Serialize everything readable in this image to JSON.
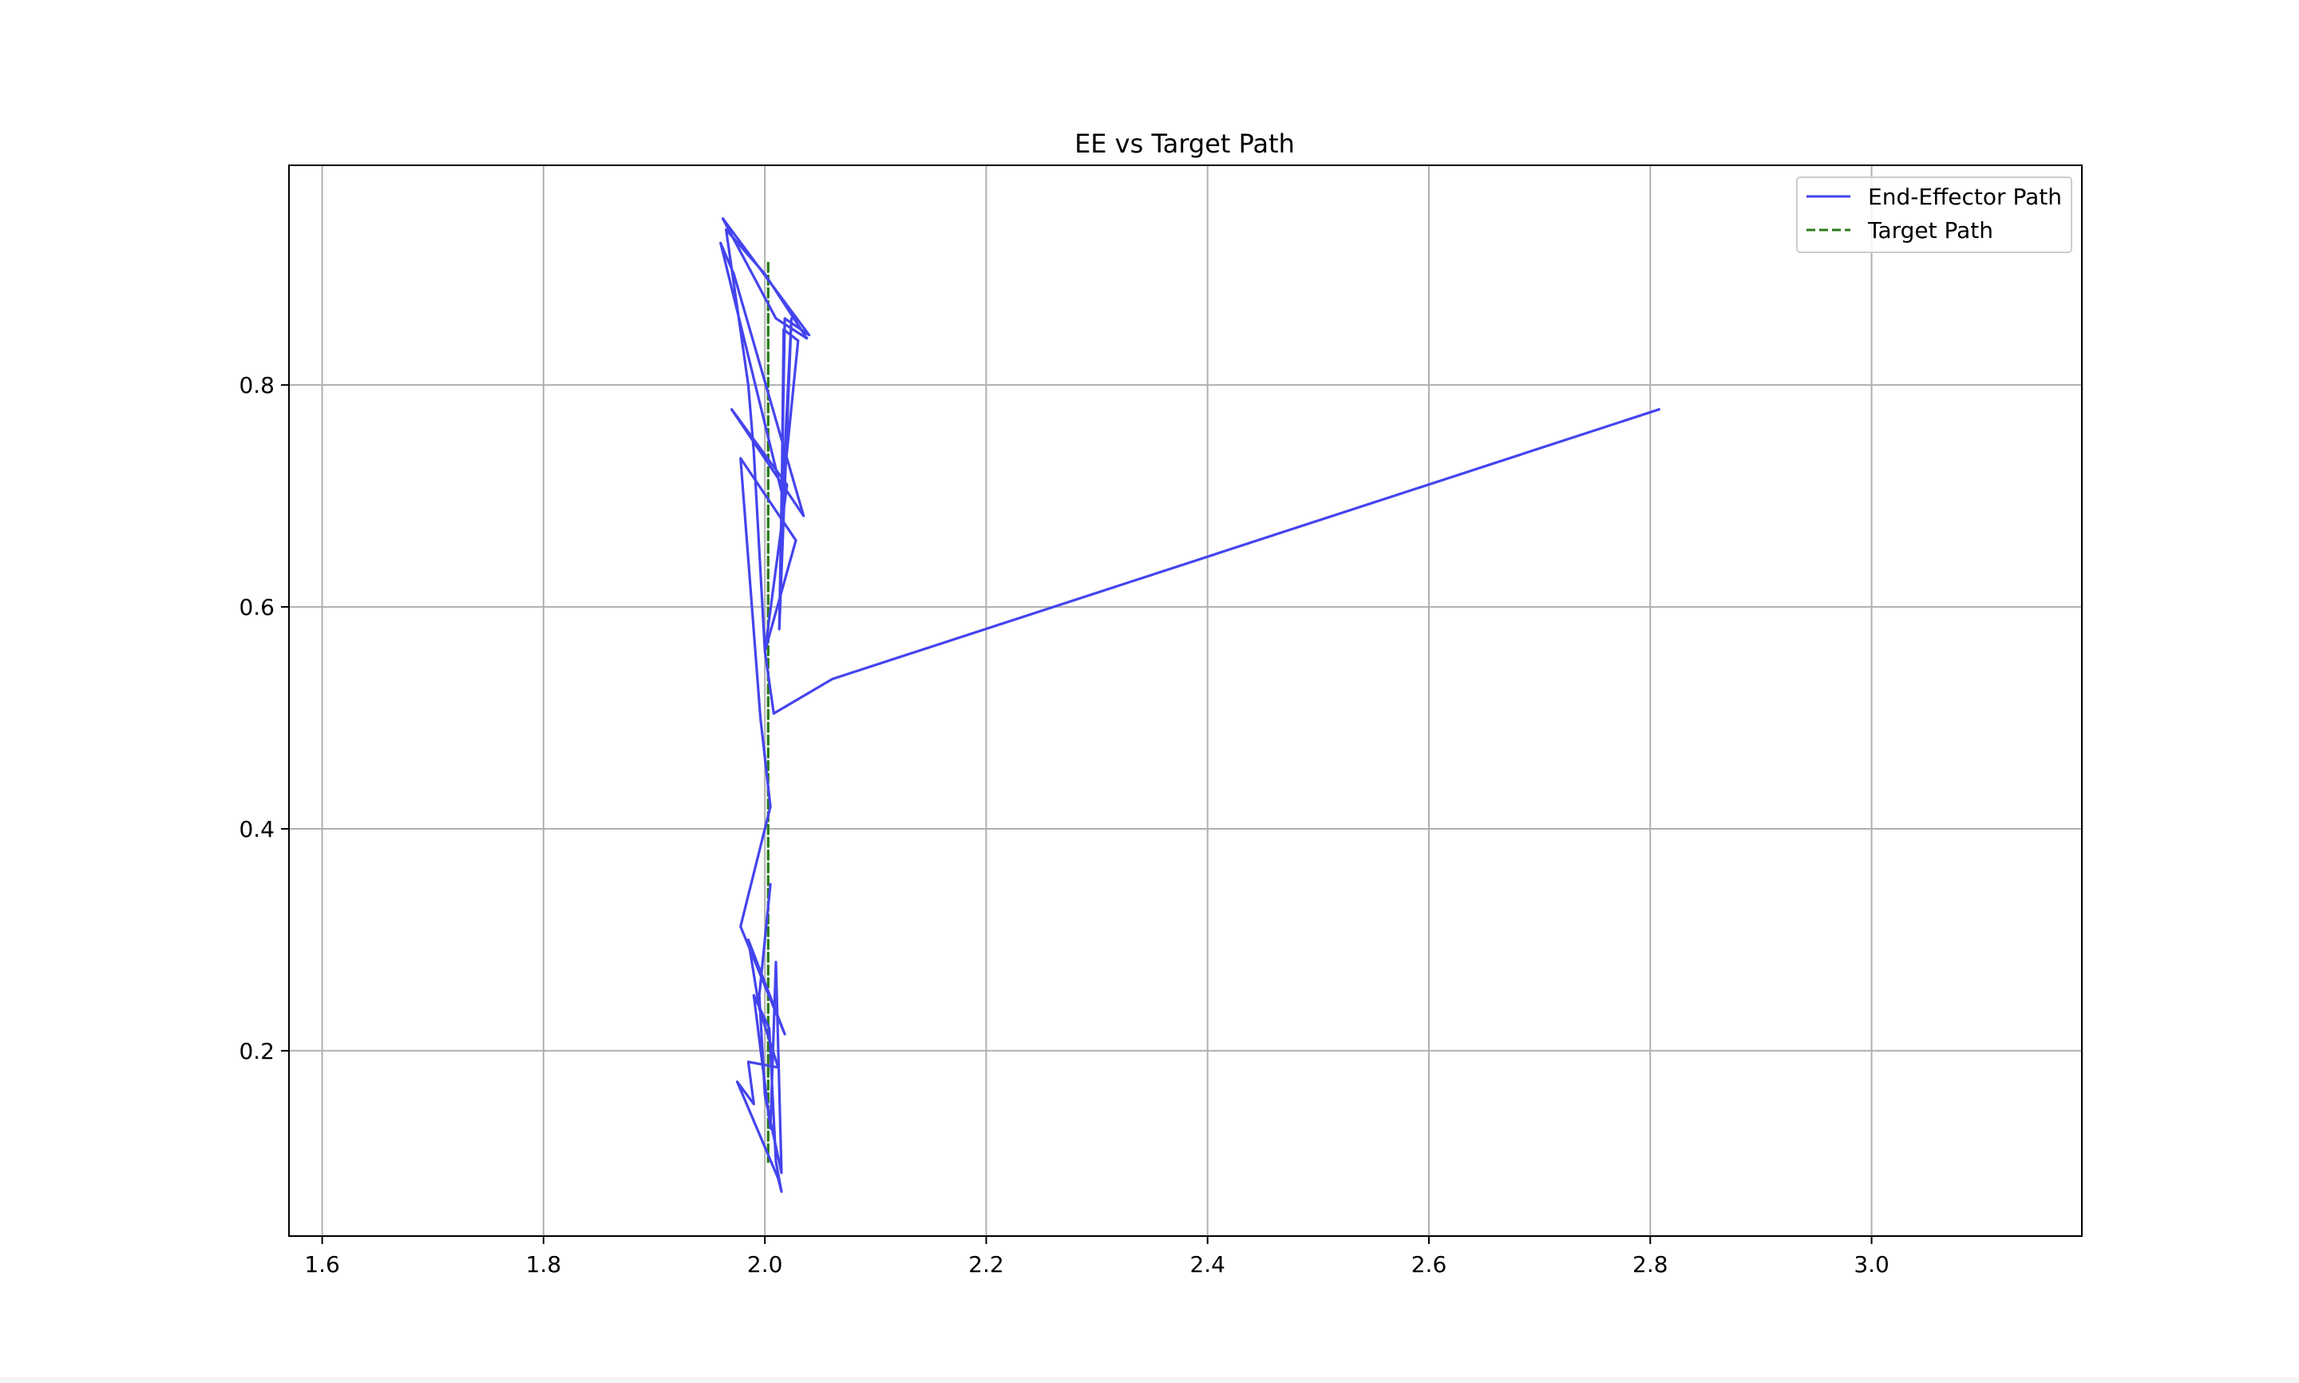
{
  "chart_data": {
    "type": "line",
    "title": "EE vs Target Path",
    "xlabel": "",
    "ylabel": "",
    "xlim": [
      1.57,
      3.19
    ],
    "ylim": [
      0.033,
      0.998
    ],
    "xticks": [
      "1.6",
      "1.8",
      "2.0",
      "2.2",
      "2.4",
      "2.6",
      "2.8",
      "3.0"
    ],
    "yticks": [
      "0.2",
      "0.4",
      "0.6",
      "0.8"
    ],
    "xtick_values": [
      1.6,
      1.8,
      2.0,
      2.2,
      2.4,
      2.6,
      2.8,
      3.0
    ],
    "ytick_values": [
      0.2,
      0.4,
      0.6,
      0.8
    ],
    "grid": true,
    "legend_position": "top-right",
    "series": [
      {
        "name": "End-Effector Path",
        "color": "#4444ee",
        "style": "solid",
        "points": [
          [
            2.808,
            0.778
          ],
          [
            2.061,
            0.535
          ],
          [
            2.008,
            0.504
          ],
          [
            2.0,
            0.56
          ],
          [
            1.99,
            0.74
          ],
          [
            1.985,
            0.8
          ],
          [
            1.965,
            0.94
          ],
          [
            2.0,
            0.9
          ],
          [
            2.038,
            0.842
          ],
          [
            2.01,
            0.86
          ],
          [
            1.962,
            0.95
          ],
          [
            2.04,
            0.845
          ],
          [
            2.018,
            0.86
          ],
          [
            2.013,
            0.58
          ],
          [
            2.024,
            0.86
          ],
          [
            2.015,
            0.68
          ],
          [
            2.017,
            0.85
          ],
          [
            2.03,
            0.84
          ],
          [
            2.016,
            0.7
          ],
          [
            1.96,
            0.928
          ],
          [
            1.972,
            0.9
          ],
          [
            2.035,
            0.682
          ],
          [
            1.97,
            0.778
          ],
          [
            2.02,
            0.71
          ],
          [
            2.0,
            0.56
          ],
          [
            2.028,
            0.66
          ],
          [
            1.978,
            0.734
          ],
          [
            1.996,
            0.5
          ],
          [
            2.005,
            0.42
          ],
          [
            1.978,
            0.312
          ],
          [
            2.018,
            0.215
          ],
          [
            1.985,
            0.3
          ],
          [
            1.995,
            0.238
          ],
          [
            2.012,
            0.185
          ],
          [
            1.985,
            0.19
          ],
          [
            1.99,
            0.152
          ],
          [
            1.975,
            0.172
          ],
          [
            2.012,
            0.085
          ],
          [
            2.015,
            0.073
          ],
          [
            2.01,
            0.1
          ],
          [
            2.004,
            0.22
          ],
          [
            1.99,
            0.25
          ],
          [
            2.005,
            0.13
          ],
          [
            2.01,
            0.28
          ],
          [
            2.015,
            0.09
          ],
          [
            2.0,
            0.16
          ],
          [
            1.995,
            0.25
          ],
          [
            2.005,
            0.35
          ]
        ]
      },
      {
        "name": "Target Path",
        "color": "#2a7a1a",
        "style": "dashed",
        "points": [
          [
            2.003,
            0.91
          ],
          [
            2.003,
            0.16
          ],
          [
            2.003,
            0.1
          ]
        ]
      }
    ]
  }
}
